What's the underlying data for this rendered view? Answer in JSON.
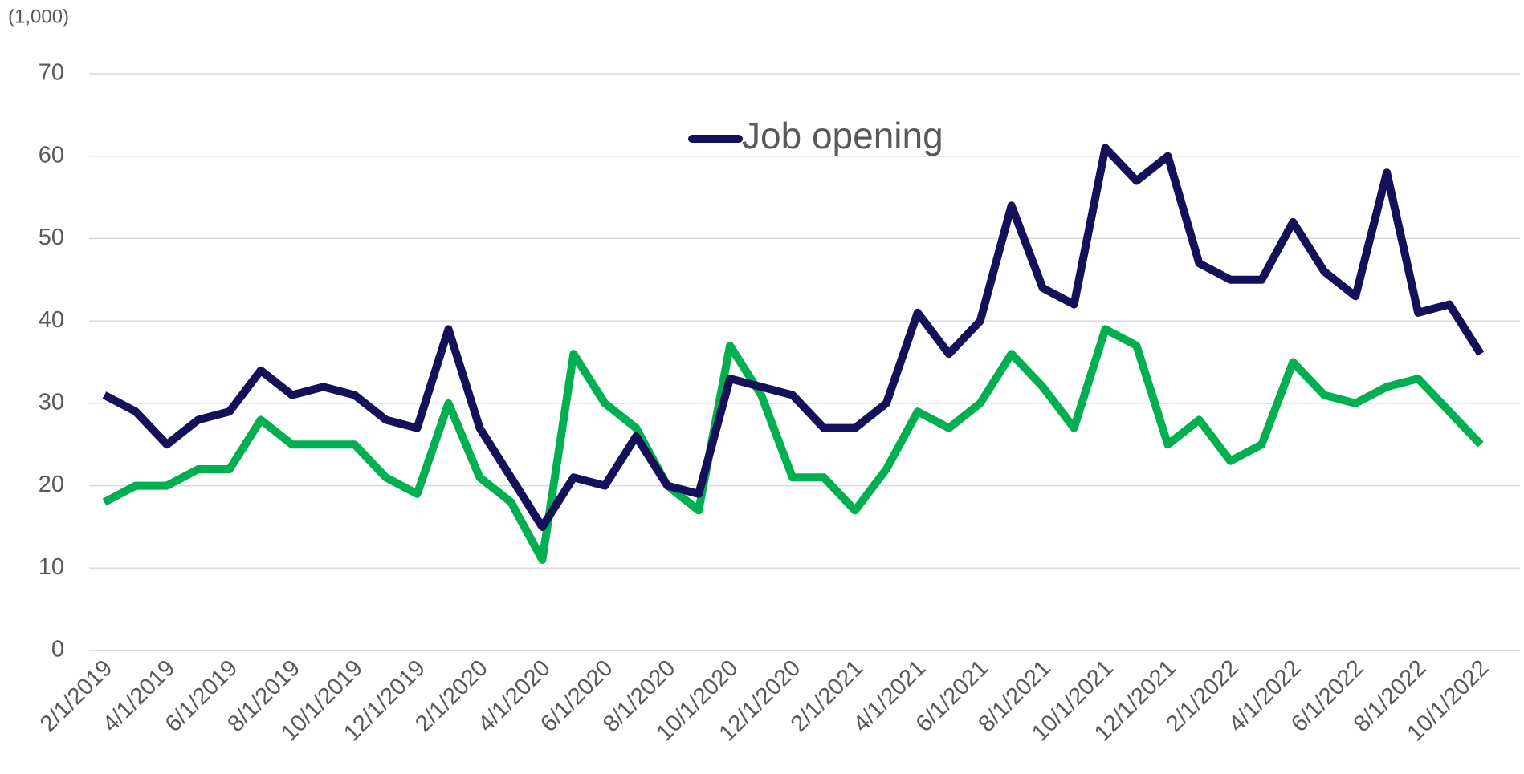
{
  "chart_data": {
    "type": "line",
    "y_unit": "(1,000)",
    "categories": [
      "2/1/2019",
      null,
      "4/1/2019",
      null,
      "6/1/2019",
      null,
      "8/1/2019",
      null,
      "10/1/2019",
      null,
      "12/1/2019",
      null,
      "2/1/2020",
      null,
      "4/1/2020",
      null,
      "6/1/2020",
      null,
      "8/1/2020",
      null,
      "10/1/2020",
      null,
      "12/1/2020",
      null,
      "2/1/2021",
      null,
      "4/1/2021",
      null,
      "6/1/2021",
      null,
      "8/1/2021",
      null,
      "10/1/2021",
      null,
      "12/1/2021",
      null,
      "2/1/2022",
      null,
      "4/1/2022",
      null,
      "6/1/2022",
      null,
      "8/1/2022",
      null,
      "10/1/2022"
    ],
    "series": [
      {
        "name": "Job opening",
        "color": "#14105a",
        "values": [
          31,
          29,
          25,
          28,
          29,
          34,
          31,
          32,
          31,
          28,
          27,
          39,
          27,
          21,
          15,
          21,
          20,
          26,
          20,
          19,
          33,
          32,
          31,
          27,
          27,
          30,
          41,
          36,
          40,
          54,
          44,
          42,
          61,
          57,
          60,
          47,
          45,
          45,
          52,
          46,
          43,
          58,
          41,
          42,
          36
        ]
      },
      {
        "color": "#00b050",
        "values": [
          18,
          20,
          20,
          22,
          22,
          28,
          25,
          25,
          25,
          21,
          19,
          30,
          21,
          18,
          11,
          36,
          30,
          27,
          20,
          17,
          37,
          31,
          21,
          21,
          17,
          22,
          29,
          27,
          30,
          36,
          32,
          27,
          39,
          37,
          25,
          28,
          23,
          25,
          35,
          31,
          30,
          32,
          33,
          29,
          25
        ]
      }
    ],
    "ylim": [
      0,
      70
    ],
    "yticks": [
      0,
      10,
      20,
      30,
      40,
      50,
      60,
      70
    ],
    "grid": true,
    "legend": "top"
  }
}
